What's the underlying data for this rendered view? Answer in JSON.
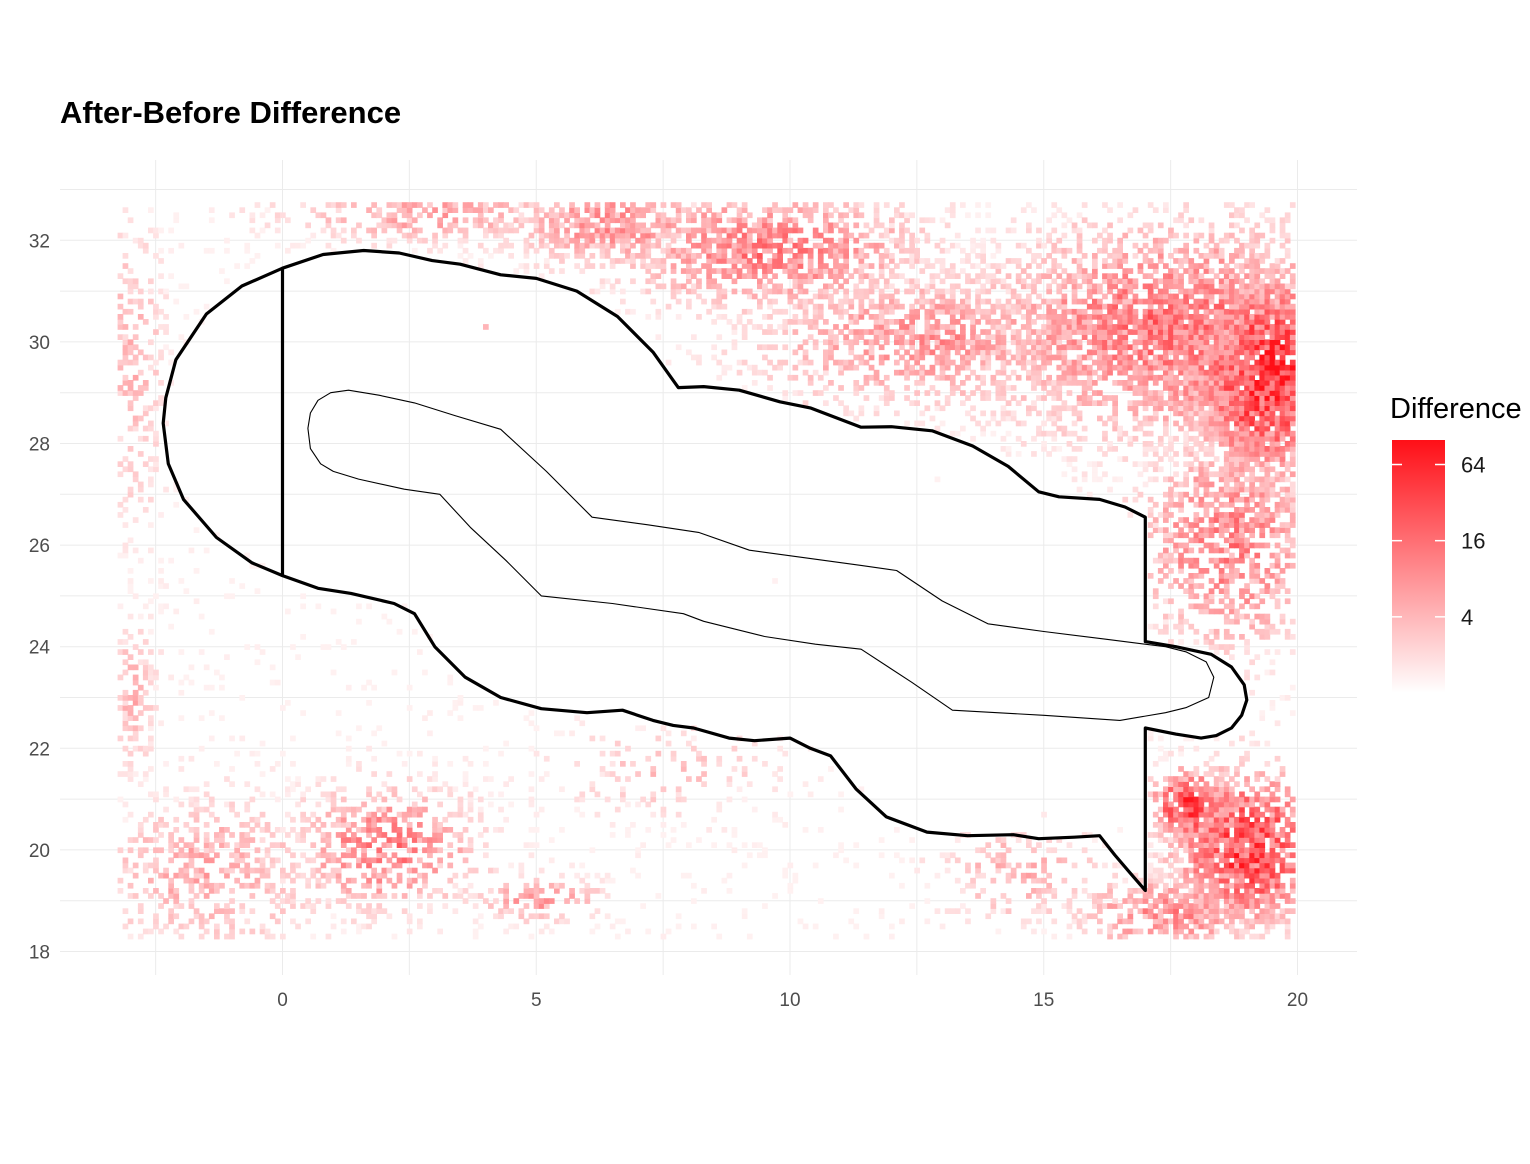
{
  "chart_data": {
    "type": "heatmap",
    "title": "After-Before Difference",
    "xlabel": "",
    "ylabel": "",
    "xlim": [
      -3.3,
      20.3
    ],
    "ylim": [
      18.2,
      32.8
    ],
    "x_ticks": [
      0,
      5,
      10,
      15,
      20
    ],
    "y_ticks": [
      18,
      20,
      22,
      24,
      26,
      28,
      30,
      32
    ],
    "grid": true,
    "colors": {
      "low": "#ffffff",
      "high": "#ff0f17",
      "outline": "#000000"
    },
    "legend": {
      "title": "Difference",
      "position": "right",
      "scale": "log2",
      "range": [
        1,
        100
      ],
      "breaks": [
        4,
        16,
        64
      ],
      "break_labels": [
        "4",
        "16",
        "64"
      ]
    },
    "heat_clusters": [
      {
        "x": 19.4,
        "y": 29.3,
        "sx": 1.0,
        "sy": 1.3,
        "intensity": 0.95,
        "density": 0.9
      },
      {
        "x": 17.5,
        "y": 30.2,
        "sx": 2.5,
        "sy": 1.4,
        "intensity": 0.6,
        "density": 0.7
      },
      {
        "x": 12.5,
        "y": 30.0,
        "sx": 2.2,
        "sy": 0.9,
        "intensity": 0.45,
        "density": 0.5
      },
      {
        "x": 9.5,
        "y": 31.8,
        "sx": 2.0,
        "sy": 0.8,
        "intensity": 0.55,
        "density": 0.6
      },
      {
        "x": 6.5,
        "y": 32.3,
        "sx": 1.5,
        "sy": 0.6,
        "intensity": 0.45,
        "density": 0.5
      },
      {
        "x": 2.8,
        "y": 32.5,
        "sx": 1.8,
        "sy": 0.4,
        "intensity": 0.4,
        "density": 0.45
      },
      {
        "x": 18.6,
        "y": 26.0,
        "sx": 1.2,
        "sy": 1.4,
        "intensity": 0.55,
        "density": 0.6
      },
      {
        "x": 19.0,
        "y": 20.0,
        "sx": 1.0,
        "sy": 1.0,
        "intensity": 0.85,
        "density": 0.85
      },
      {
        "x": 17.8,
        "y": 20.8,
        "sx": 0.5,
        "sy": 0.5,
        "intensity": 0.85,
        "density": 0.8
      },
      {
        "x": 17.5,
        "y": 18.7,
        "sx": 1.3,
        "sy": 0.5,
        "intensity": 0.5,
        "density": 0.6
      },
      {
        "x": 2.0,
        "y": 20.0,
        "sx": 1.2,
        "sy": 0.8,
        "intensity": 0.55,
        "density": 0.55
      },
      {
        "x": -1.5,
        "y": 19.5,
        "sx": 1.5,
        "sy": 1.0,
        "intensity": 0.35,
        "density": 0.4
      },
      {
        "x": -3.0,
        "y": 23.0,
        "sx": 0.3,
        "sy": 1.0,
        "intensity": 0.3,
        "density": 0.45
      },
      {
        "x": -3.0,
        "y": 29.5,
        "sx": 0.4,
        "sy": 2.0,
        "intensity": 0.3,
        "density": 0.35
      },
      {
        "x": 4.2,
        "y": 30.0,
        "sx": 0.6,
        "sy": 0.3,
        "intensity": 0.4,
        "density": 0.45
      },
      {
        "x": 5.0,
        "y": 19.0,
        "sx": 0.8,
        "sy": 0.3,
        "intensity": 0.45,
        "density": 0.4
      },
      {
        "x": 14.5,
        "y": 19.5,
        "sx": 1.0,
        "sy": 0.6,
        "intensity": 0.35,
        "density": 0.3
      },
      {
        "x": 7.5,
        "y": 21.5,
        "sx": 1.5,
        "sy": 0.6,
        "intensity": 0.25,
        "density": 0.15
      }
    ],
    "outer_outline": [
      [
        0,
        31.45
      ],
      [
        0.8,
        31.72
      ],
      [
        1.6,
        31.8
      ],
      [
        2.3,
        31.75
      ],
      [
        2.95,
        31.6
      ],
      [
        3.5,
        31.53
      ],
      [
        4.3,
        31.32
      ],
      [
        5.0,
        31.25
      ],
      [
        5.8,
        31.0
      ],
      [
        6.6,
        30.5
      ],
      [
        7.3,
        29.8
      ],
      [
        7.8,
        29.1
      ],
      [
        8.3,
        29.12
      ],
      [
        9.0,
        29.05
      ],
      [
        9.8,
        28.82
      ],
      [
        10.4,
        28.7
      ],
      [
        11.4,
        28.32
      ],
      [
        12.0,
        28.33
      ],
      [
        12.8,
        28.25
      ],
      [
        13.6,
        27.95
      ],
      [
        14.3,
        27.55
      ],
      [
        14.9,
        27.05
      ],
      [
        15.3,
        26.95
      ],
      [
        16.1,
        26.9
      ],
      [
        16.6,
        26.75
      ],
      [
        17.0,
        26.55
      ],
      [
        17.0,
        24.1
      ],
      [
        17.6,
        24.0
      ],
      [
        18.3,
        23.85
      ],
      [
        18.7,
        23.6
      ],
      [
        18.95,
        23.25
      ],
      [
        19.0,
        22.95
      ],
      [
        18.9,
        22.65
      ],
      [
        18.7,
        22.4
      ],
      [
        18.4,
        22.25
      ],
      [
        18.1,
        22.2
      ],
      [
        17.6,
        22.28
      ],
      [
        17.0,
        22.4
      ],
      [
        17.0,
        19.2
      ],
      [
        16.7,
        19.55
      ],
      [
        16.4,
        19.9
      ],
      [
        16.2,
        20.15
      ],
      [
        16.1,
        20.28
      ],
      [
        15.6,
        20.25
      ],
      [
        14.9,
        20.22
      ],
      [
        14.4,
        20.3
      ],
      [
        13.5,
        20.28
      ],
      [
        12.7,
        20.35
      ],
      [
        11.9,
        20.65
      ],
      [
        11.3,
        21.2
      ],
      [
        10.8,
        21.85
      ],
      [
        10.4,
        22.0
      ],
      [
        10.0,
        22.2
      ],
      [
        9.3,
        22.15
      ],
      [
        8.8,
        22.2
      ],
      [
        8.1,
        22.4
      ],
      [
        7.7,
        22.45
      ],
      [
        7.3,
        22.55
      ],
      [
        6.7,
        22.75
      ],
      [
        6.0,
        22.7
      ],
      [
        5.1,
        22.78
      ],
      [
        4.3,
        23.0
      ],
      [
        3.6,
        23.4
      ],
      [
        3.0,
        24.0
      ],
      [
        2.6,
        24.65
      ],
      [
        2.2,
        24.85
      ],
      [
        1.35,
        25.05
      ],
      [
        0.7,
        25.15
      ],
      [
        0,
        25.4
      ]
    ],
    "outer_cap": [
      [
        0,
        31.45
      ],
      [
        -0.8,
        31.1
      ],
      [
        -1.5,
        30.55
      ],
      [
        -2.1,
        29.65
      ],
      [
        -2.3,
        28.9
      ],
      [
        -2.35,
        28.4
      ],
      [
        -2.25,
        27.6
      ],
      [
        -1.95,
        26.9
      ],
      [
        -1.3,
        26.15
      ],
      [
        -0.6,
        25.65
      ],
      [
        0,
        25.4
      ]
    ],
    "inner_outline": [
      [
        0.5,
        28.3
      ],
      [
        0.55,
        28.6
      ],
      [
        0.7,
        28.85
      ],
      [
        0.95,
        29.0
      ],
      [
        1.3,
        29.05
      ],
      [
        1.9,
        28.95
      ],
      [
        2.6,
        28.8
      ],
      [
        3.4,
        28.55
      ],
      [
        4.3,
        28.28
      ],
      [
        5.2,
        27.45
      ],
      [
        6.1,
        26.55
      ],
      [
        7.2,
        26.4
      ],
      [
        8.2,
        26.25
      ],
      [
        9.2,
        25.9
      ],
      [
        10.3,
        25.75
      ],
      [
        11.4,
        25.6
      ],
      [
        12.1,
        25.5
      ],
      [
        13.0,
        24.9
      ],
      [
        13.9,
        24.45
      ],
      [
        15.0,
        24.3
      ],
      [
        16.2,
        24.15
      ],
      [
        17.4,
        24.0
      ],
      [
        17.8,
        23.9
      ],
      [
        18.2,
        23.7
      ],
      [
        18.35,
        23.4
      ],
      [
        18.25,
        23.0
      ],
      [
        17.8,
        22.8
      ],
      [
        17.4,
        22.7
      ],
      [
        16.5,
        22.55
      ],
      [
        15.0,
        22.65
      ],
      [
        13.2,
        22.75
      ],
      [
        12.4,
        23.3
      ],
      [
        11.4,
        23.95
      ],
      [
        10.5,
        24.05
      ],
      [
        9.5,
        24.2
      ],
      [
        8.3,
        24.5
      ],
      [
        7.9,
        24.65
      ],
      [
        6.5,
        24.85
      ],
      [
        5.1,
        25.0
      ],
      [
        4.4,
        25.7
      ],
      [
        3.7,
        26.35
      ],
      [
        3.1,
        27.0
      ],
      [
        2.4,
        27.1
      ],
      [
        1.5,
        27.3
      ],
      [
        1.0,
        27.45
      ],
      [
        0.75,
        27.6
      ],
      [
        0.55,
        27.9
      ],
      [
        0.5,
        28.3
      ]
    ]
  }
}
